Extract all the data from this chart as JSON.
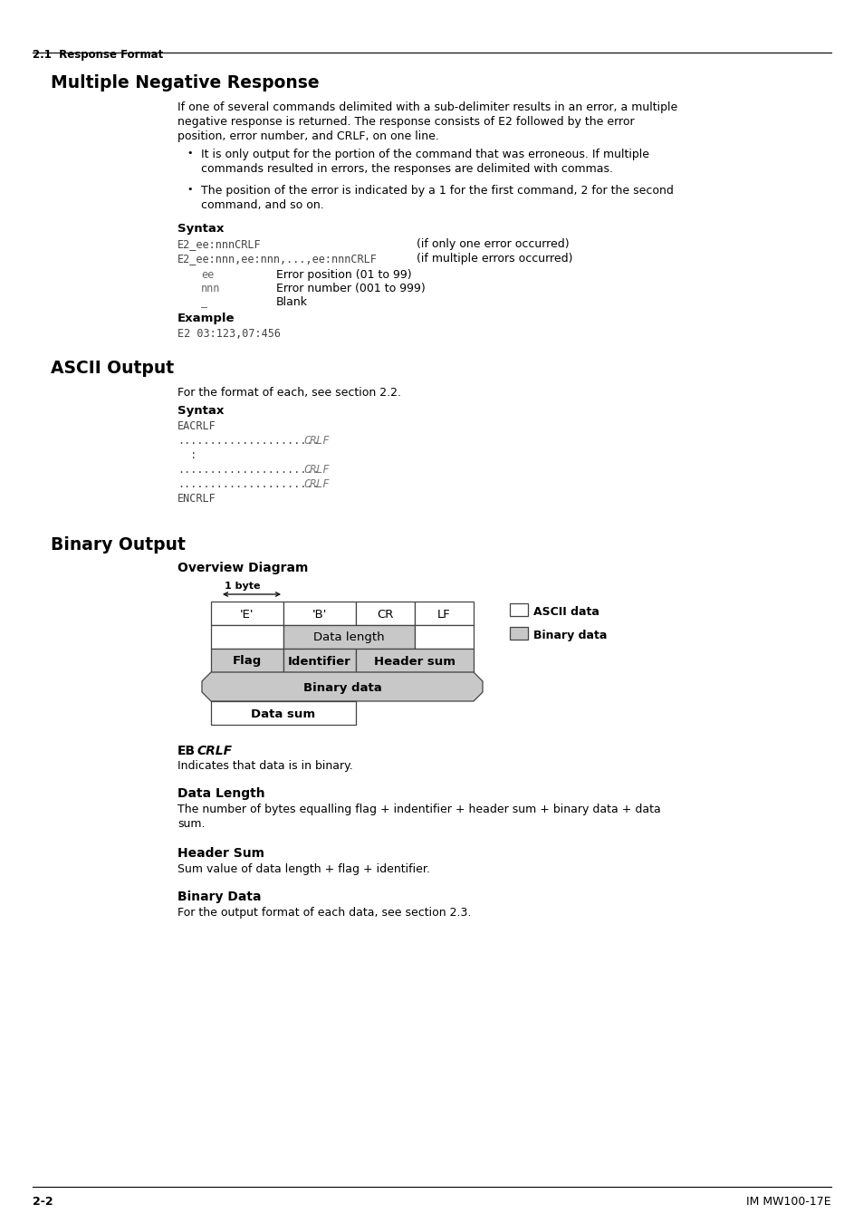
{
  "page_bg": "#ffffff",
  "header_section": "2.1  Response Format",
  "section1_title": "Multiple Negative Response",
  "section1_body1": "If one of several commands delimited with a sub-delimiter results in an error, a multiple\nnegative response is returned. The response consists of E2 followed by the error\nposition, error number, and CRLF, on one line.",
  "section1_bullet1": "It is only output for the portion of the command that was erroneous. If multiple\ncommands resulted in errors, the responses are delimited with commas.",
  "section1_bullet2": "The position of the error is indicated by a 1 for the first command, 2 for the second\ncommand, and so on.",
  "syntax1_label": "Syntax",
  "syntax1_line1_code": "E2_ee:nnnCRLF",
  "syntax1_line1_desc": "(if only one error occurred)",
  "syntax1_line2_code": "E2_ee:nnn,ee:nnn,...,ee:nnnCRLF",
  "syntax1_line2_desc": "(if multiple errors occurred)",
  "syntax1_ee_label": "ee",
  "syntax1_ee_desc": "Error position (01 to 99)",
  "syntax1_nnn_label": "nnn",
  "syntax1_nnn_desc": "Error number (001 to 999)",
  "syntax1_blank_label": "_",
  "syntax1_blank_desc": "Blank",
  "example1_label": "Example",
  "example1_code": "E2 03:123,07:456",
  "section2_title": "ASCII Output",
  "section2_body": "For the format of each, see section 2.2.",
  "syntax2_label": "Syntax",
  "syntax2_lines": [
    "EACRLF",
    "......................CRLF",
    "  :",
    "......................CRLF",
    "......................CRLF",
    "ENCRLF"
  ],
  "section3_title": "Binary Output",
  "overview_label": "Overview Diagram",
  "footer_left": "2-2",
  "footer_right": "IM MW100-17E",
  "eb_desc": "Indicates that data is in binary.",
  "data_length_title": "Data Length",
  "data_length_body": "The number of bytes equalling flag + indentifier + header sum + binary data + data\nsum.",
  "header_sum_title": "Header Sum",
  "header_sum_body": "Sum value of data length + flag + identifier.",
  "binary_data_title": "Binary Data",
  "binary_data_body": "For the output format of each data, see section 2.3.",
  "legend_ascii": "ASCII data",
  "legend_binary": "Binary data"
}
